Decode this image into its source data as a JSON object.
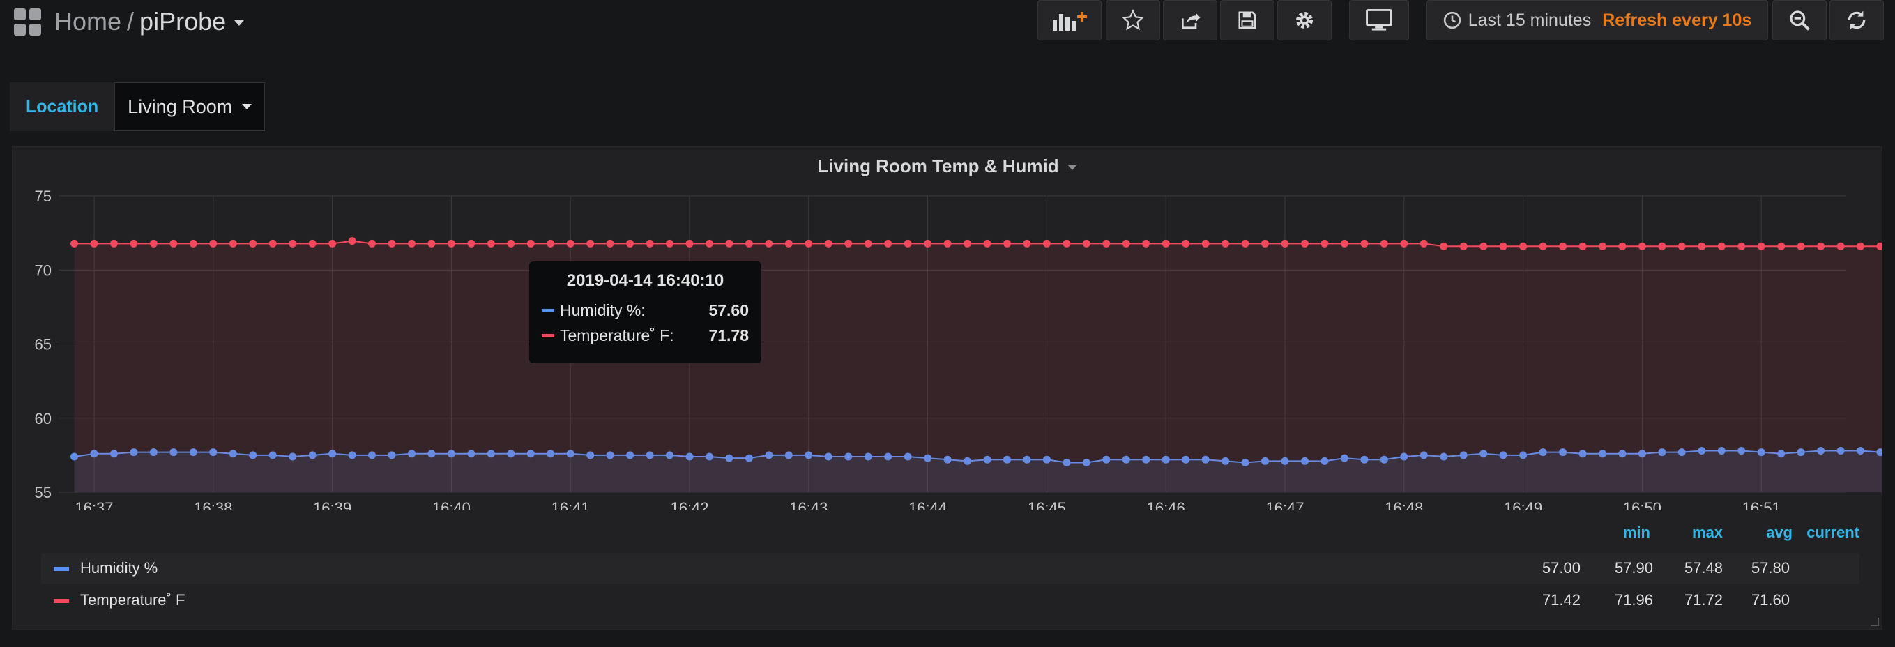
{
  "header": {
    "home": "Home",
    "separator": "/",
    "dashboard_title": "piProbe",
    "icons": {
      "add_panel": "add-panel-icon",
      "star": "star-icon",
      "share": "share-icon",
      "save": "save-icon",
      "settings": "gear-icon",
      "tv_mode": "monitor-icon",
      "time": "clock-icon",
      "zoom_out": "zoom-out-icon",
      "refresh": "refresh-icon"
    },
    "time_range": "Last 15 minutes",
    "refresh_interval": "Refresh every 10s"
  },
  "variables": {
    "label": "Location",
    "value": "Living Room"
  },
  "panel": {
    "title": "Living Room Temp & Humid",
    "tooltip": {
      "time": "2019-04-14 16:40:10",
      "rows": [
        {
          "name": "Humidity %:",
          "value": "57.60",
          "color": "#5794f2"
        },
        {
          "name": "Temperature˚ F:",
          "value": "71.78",
          "color": "#f2495c"
        }
      ]
    },
    "legend": {
      "columns": [
        "min",
        "max",
        "avg",
        "current"
      ],
      "rows": [
        {
          "name": "Humidity %",
          "color": "#5794f2",
          "min": "57.00",
          "max": "57.90",
          "avg": "57.48",
          "current": "57.80"
        },
        {
          "name": "Temperature˚ F",
          "color": "#f2495c",
          "min": "71.42",
          "max": "71.96",
          "avg": "71.72",
          "current": "71.60"
        }
      ]
    }
  },
  "chart_data": {
    "type": "area",
    "title": "Living Room Temp & Humid",
    "ylim": [
      55,
      75
    ],
    "yticks": [
      "55",
      "60",
      "65",
      "70",
      "75"
    ],
    "xticks": [
      "16:37",
      "16:38",
      "16:39",
      "16:40",
      "16:41",
      "16:42",
      "16:43",
      "16:44",
      "16:45",
      "16:46",
      "16:47",
      "16:48",
      "16:49",
      "16:50",
      "16:51"
    ],
    "x_start": "16:36:50",
    "x_interval_seconds": 10,
    "grid": true,
    "series": [
      {
        "name": "Humidity %",
        "color": "#5794f2",
        "values": [
          57.4,
          57.6,
          57.6,
          57.7,
          57.7,
          57.7,
          57.7,
          57.7,
          57.6,
          57.5,
          57.5,
          57.4,
          57.5,
          57.6,
          57.5,
          57.5,
          57.5,
          57.6,
          57.6,
          57.6,
          57.6,
          57.6,
          57.6,
          57.6,
          57.6,
          57.6,
          57.5,
          57.5,
          57.5,
          57.5,
          57.5,
          57.4,
          57.4,
          57.3,
          57.3,
          57.5,
          57.5,
          57.5,
          57.4,
          57.4,
          57.4,
          57.4,
          57.4,
          57.3,
          57.2,
          57.1,
          57.2,
          57.2,
          57.2,
          57.2,
          57.0,
          57.0,
          57.2,
          57.2,
          57.2,
          57.2,
          57.2,
          57.2,
          57.1,
          57.0,
          57.1,
          57.1,
          57.1,
          57.1,
          57.3,
          57.2,
          57.2,
          57.4,
          57.5,
          57.4,
          57.5,
          57.6,
          57.5,
          57.5,
          57.7,
          57.7,
          57.6,
          57.6,
          57.6,
          57.6,
          57.7,
          57.7,
          57.8,
          57.8,
          57.8,
          57.7,
          57.6,
          57.7,
          57.8,
          57.8,
          57.8,
          57.7,
          57.7,
          57.7,
          57.8,
          57.9,
          57.8,
          57.6,
          57.8,
          57.9,
          57.8
        ]
      },
      {
        "name": "Temperature˚ F",
        "color": "#f2495c",
        "values": [
          71.78,
          71.78,
          71.78,
          71.78,
          71.78,
          71.78,
          71.78,
          71.78,
          71.78,
          71.78,
          71.78,
          71.78,
          71.78,
          71.78,
          71.96,
          71.78,
          71.78,
          71.78,
          71.78,
          71.78,
          71.78,
          71.78,
          71.78,
          71.78,
          71.78,
          71.78,
          71.78,
          71.78,
          71.78,
          71.78,
          71.78,
          71.78,
          71.78,
          71.78,
          71.78,
          71.78,
          71.78,
          71.78,
          71.78,
          71.78,
          71.78,
          71.78,
          71.78,
          71.78,
          71.78,
          71.78,
          71.78,
          71.78,
          71.78,
          71.78,
          71.78,
          71.78,
          71.78,
          71.78,
          71.78,
          71.78,
          71.78,
          71.78,
          71.78,
          71.78,
          71.78,
          71.78,
          71.78,
          71.78,
          71.78,
          71.78,
          71.78,
          71.78,
          71.78,
          71.6,
          71.6,
          71.6,
          71.6,
          71.6,
          71.6,
          71.6,
          71.6,
          71.6,
          71.6,
          71.6,
          71.6,
          71.6,
          71.6,
          71.6,
          71.6,
          71.6,
          71.6,
          71.6,
          71.6,
          71.6,
          71.6,
          71.6,
          71.6,
          71.6,
          71.6,
          71.6,
          71.6,
          71.6,
          71.6,
          71.42,
          71.6
        ]
      }
    ]
  }
}
